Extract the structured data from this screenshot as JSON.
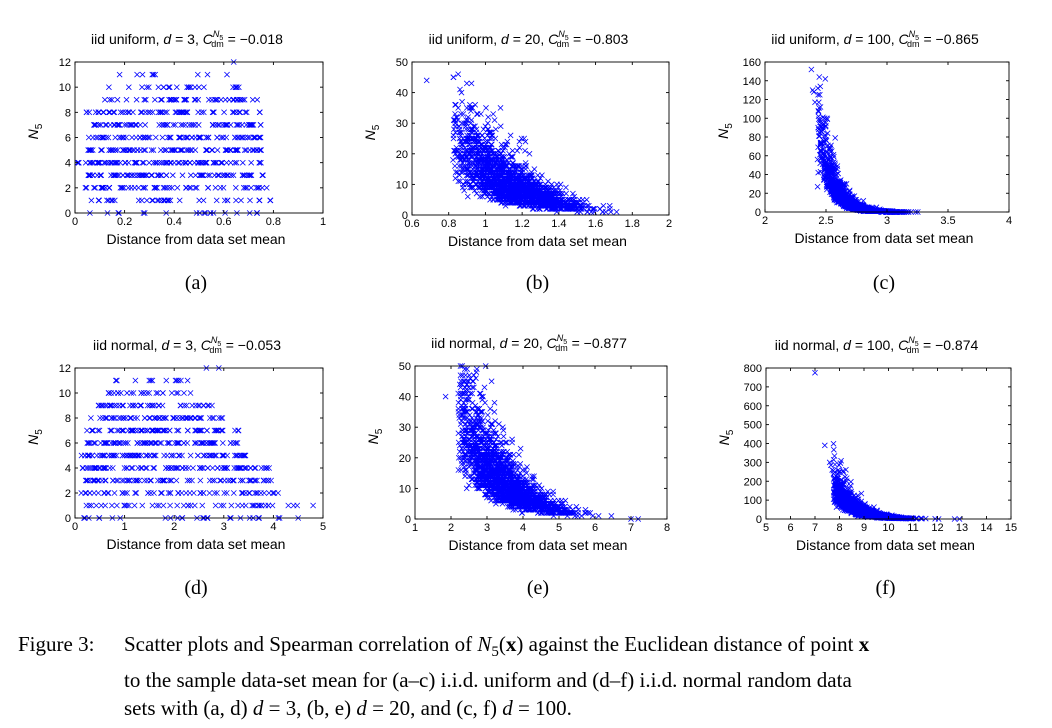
{
  "chart_data": [
    {
      "id": "a",
      "panel_label": "(a)",
      "type": "scatter",
      "title": {
        "prefix": "iid uniform,  ",
        "dvar": "d",
        "deq": " = 3,  ",
        "corr": " = −0.018"
      },
      "xlabel": "Distance from data set mean",
      "ylabel": "N5",
      "xlim": [
        0,
        1
      ],
      "ylim": [
        0,
        12
      ],
      "xticks": [
        0,
        0.2,
        0.4,
        0.6,
        0.8,
        1
      ],
      "xticklabels": [
        "0",
        "0.2",
        "0.4",
        "0.6",
        "0.8",
        "1"
      ],
      "yticks": [
        0,
        2,
        4,
        6,
        8,
        10,
        12
      ],
      "yticklabels": [
        "0",
        "2",
        "4",
        "6",
        "8",
        "10",
        "12"
      ],
      "marker": "x",
      "color": "#0000ff",
      "seed": 11,
      "kind": "bands",
      "bands": [
        {
          "y": 0,
          "x0": 0.06,
          "x1": 0.86,
          "n": 18
        },
        {
          "y": 1,
          "x0": 0.06,
          "x1": 0.79,
          "n": 38
        },
        {
          "y": 2,
          "x0": 0.04,
          "x1": 0.78,
          "n": 60
        },
        {
          "y": 3,
          "x0": 0.05,
          "x1": 0.78,
          "n": 75
        },
        {
          "y": 4,
          "x0": 0.01,
          "x1": 0.76,
          "n": 85
        },
        {
          "y": 5,
          "x0": 0.05,
          "x1": 0.76,
          "n": 85
        },
        {
          "y": 6,
          "x0": 0.05,
          "x1": 0.76,
          "n": 80
        },
        {
          "y": 7,
          "x0": 0.06,
          "x1": 0.76,
          "n": 70
        },
        {
          "y": 8,
          "x0": 0.04,
          "x1": 0.76,
          "n": 60
        },
        {
          "y": 9,
          "x0": 0.1,
          "x1": 0.74,
          "n": 45
        },
        {
          "y": 10,
          "x0": 0.11,
          "x1": 0.72,
          "n": 25
        },
        {
          "y": 11,
          "x0": 0.16,
          "x1": 0.71,
          "n": 9
        }
      ],
      "points": [
        [
          0.01,
          4
        ],
        [
          0.64,
          12
        ],
        [
          0.06,
          0
        ]
      ]
    },
    {
      "id": "b",
      "panel_label": "(b)",
      "type": "scatter",
      "title": {
        "prefix": "iid uniform,  ",
        "dvar": "d",
        "deq": " = 20,  ",
        "corr": " = −0.803"
      },
      "xlabel": "Distance from data set mean",
      "ylabel": "N5",
      "xlim": [
        0.6,
        2
      ],
      "ylim": [
        0,
        50
      ],
      "xticks": [
        0.6,
        0.8,
        1,
        1.2,
        1.4,
        1.6,
        1.8,
        2
      ],
      "xticklabels": [
        "0.6",
        "0.8",
        "1",
        "1.2",
        "1.4",
        "1.6",
        "1.8",
        "2"
      ],
      "yticks": [
        0,
        10,
        20,
        30,
        40,
        50
      ],
      "yticklabels": [
        "0",
        "10",
        "20",
        "30",
        "40",
        "50"
      ],
      "marker": "x",
      "color": "#0000ff",
      "seed": 22,
      "kind": "decay",
      "n": 2200,
      "decay": {
        "x0": 0.82,
        "x1": 1.78,
        "a": 26,
        "k": 3.2,
        "spread": 0.55,
        "xmode": "mid",
        "xm": 1.15,
        "xs": 0.17
      },
      "points": [
        [
          0.68,
          44
        ],
        [
          0.84,
          32
        ],
        [
          0.86,
          28
        ],
        [
          0.9,
          26
        ],
        [
          0.95,
          27
        ],
        [
          1.0,
          29
        ]
      ]
    },
    {
      "id": "c",
      "panel_label": "(c)",
      "type": "scatter",
      "title": {
        "prefix": "iid uniform,  ",
        "dvar": "d",
        "deq": " = 100,  ",
        "corr": " = −0.865"
      },
      "xlabel": "Distance from data set mean",
      "ylabel": "N5",
      "xlim": [
        2,
        4
      ],
      "ylim": [
        0,
        160
      ],
      "xticks": [
        2,
        2.5,
        3,
        3.5,
        4
      ],
      "xticklabels": [
        "2",
        "2.5",
        "3",
        "3.5",
        "4"
      ],
      "yticks": [
        0,
        20,
        40,
        60,
        80,
        100,
        120,
        140,
        160
      ],
      "yticklabels": [
        "0",
        "20",
        "40",
        "60",
        "80",
        "100",
        "120",
        "140",
        "160"
      ],
      "marker": "x",
      "color": "#0000ff",
      "seed": 33,
      "kind": "decay",
      "n": 1900,
      "decay": {
        "x0": 2.43,
        "x1": 3.42,
        "a": 95,
        "k": 9.0,
        "spread": 0.5,
        "xmode": "mid",
        "xm": 2.72,
        "xs": 0.15
      },
      "points": [
        [
          2.38,
          152
        ],
        [
          2.39,
          130
        ],
        [
          2.4,
          128
        ],
        [
          2.41,
          117
        ],
        [
          2.45,
          98
        ],
        [
          2.46,
          94
        ]
      ]
    },
    {
      "id": "d",
      "panel_label": "(d)",
      "type": "scatter",
      "title": {
        "prefix": "iid normal,  ",
        "dvar": "d",
        "deq": " = 3,  ",
        "corr": " = −0.053"
      },
      "xlabel": "Distance from data set mean",
      "ylabel": "N5",
      "xlim": [
        0,
        5
      ],
      "ylim": [
        0,
        12
      ],
      "xticks": [
        0,
        1,
        2,
        3,
        4,
        5
      ],
      "xticklabels": [
        "0",
        "1",
        "2",
        "3",
        "4",
        "5"
      ],
      "yticks": [
        0,
        2,
        4,
        6,
        8,
        10,
        12
      ],
      "yticklabels": [
        "0",
        "2",
        "4",
        "6",
        "8",
        "10",
        "12"
      ],
      "marker": "x",
      "color": "#0000ff",
      "seed": 44,
      "kind": "bands",
      "bands": [
        {
          "y": 0,
          "x0": 0.15,
          "x1": 4.2,
          "n": 26
        },
        {
          "y": 1,
          "x0": 0.1,
          "x1": 4.5,
          "n": 45
        },
        {
          "y": 2,
          "x0": 0.1,
          "x1": 4.1,
          "n": 60
        },
        {
          "y": 3,
          "x0": 0.15,
          "x1": 4.0,
          "n": 75
        },
        {
          "y": 4,
          "x0": 0.15,
          "x1": 3.95,
          "n": 85
        },
        {
          "y": 5,
          "x0": 0.1,
          "x1": 3.5,
          "n": 85
        },
        {
          "y": 6,
          "x0": 0.2,
          "x1": 3.3,
          "n": 80
        },
        {
          "y": 7,
          "x0": 0.2,
          "x1": 3.3,
          "n": 70
        },
        {
          "y": 8,
          "x0": 0.3,
          "x1": 3.0,
          "n": 60
        },
        {
          "y": 9,
          "x0": 0.45,
          "x1": 2.8,
          "n": 45
        },
        {
          "y": 10,
          "x0": 0.6,
          "x1": 2.5,
          "n": 25
        },
        {
          "y": 11,
          "x0": 0.7,
          "x1": 2.3,
          "n": 12
        }
      ],
      "points": [
        [
          2.65,
          12
        ],
        [
          2.9,
          12
        ],
        [
          4.8,
          1
        ],
        [
          4.5,
          0
        ],
        [
          4.3,
          1
        ],
        [
          4.1,
          0
        ],
        [
          3.9,
          1
        ]
      ]
    },
    {
      "id": "e",
      "panel_label": "(e)",
      "type": "scatter",
      "title": {
        "prefix": "iid normal,  ",
        "dvar": "d",
        "deq": " = 20,  ",
        "corr": " = −0.877"
      },
      "xlabel": "Distance from data set mean",
      "ylabel": "N5",
      "xlim": [
        1,
        8
      ],
      "ylim": [
        0,
        50
      ],
      "xticks": [
        1,
        2,
        3,
        4,
        5,
        6,
        7,
        8
      ],
      "xticklabels": [
        "1",
        "2",
        "3",
        "4",
        "5",
        "6",
        "7",
        "8"
      ],
      "yticks": [
        0,
        10,
        20,
        30,
        40,
        50
      ],
      "yticklabels": [
        "0",
        "10",
        "20",
        "30",
        "40",
        "50"
      ],
      "marker": "x",
      "color": "#0000ff",
      "seed": 55,
      "kind": "decay",
      "n": 2200,
      "decay": {
        "x0": 2.2,
        "x1": 7.1,
        "a": 34,
        "k": 0.85,
        "spread": 0.5,
        "xmode": "mid",
        "xm": 3.5,
        "xs": 0.75
      },
      "points": [
        [
          1.85,
          40
        ],
        [
          2.3,
          44
        ],
        [
          2.2,
          41
        ],
        [
          2.4,
          42
        ],
        [
          2.6,
          38
        ],
        [
          7.2,
          0
        ],
        [
          7.0,
          0
        ]
      ]
    },
    {
      "id": "f",
      "panel_label": "(f)",
      "type": "scatter",
      "title": {
        "prefix": "iid normal,  ",
        "dvar": "d",
        "deq": " = 100,  ",
        "corr": " = −0.874"
      },
      "xlabel": "Distance from data set mean",
      "ylabel": "N5",
      "xlim": [
        5,
        15
      ],
      "ylim": [
        0,
        800
      ],
      "xticks": [
        5,
        6,
        7,
        8,
        9,
        10,
        11,
        12,
        13,
        14,
        15
      ],
      "xticklabels": [
        "5",
        "6",
        "7",
        "8",
        "9",
        "10",
        "11",
        "12",
        "13",
        "14",
        "15"
      ],
      "yticks": [
        0,
        100,
        200,
        300,
        400,
        500,
        600,
        700,
        800
      ],
      "yticklabels": [
        "0",
        "100",
        "200",
        "300",
        "400",
        "500",
        "600",
        "700",
        "800"
      ],
      "marker": "x",
      "color": "#0000ff",
      "seed": 66,
      "kind": "decay",
      "n": 1800,
      "decay": {
        "x0": 7.75,
        "x1": 12.8,
        "a": 180,
        "k": 1.3,
        "spread": 0.5,
        "xmode": "mid",
        "xm": 9.0,
        "xs": 0.8
      },
      "points": [
        [
          7.0,
          775
        ],
        [
          7.4,
          390
        ],
        [
          7.6,
          300
        ],
        [
          7.65,
          285
        ],
        [
          7.7,
          260
        ],
        [
          12.9,
          0
        ],
        [
          12.7,
          0
        ]
      ]
    }
  ],
  "caption": {
    "label": "Figure 3:",
    "lines": [
      [
        {
          "t": "Scatter plots and Spearman correlation of "
        },
        {
          "t": "N",
          "i": true
        },
        {
          "t": "5",
          "sub": true
        },
        {
          "t": "("
        },
        {
          "t": "x",
          "b": true
        },
        {
          "t": ") against the Euclidean distance of point "
        },
        {
          "t": "x",
          "b": true
        }
      ],
      [
        {
          "t": "to the sample data-set mean for (a–c) i.i.d. uniform and (d–f) i.i.d. normal random data"
        }
      ],
      [
        {
          "t": "sets with (a, d) "
        },
        {
          "t": "d",
          "i": true
        },
        {
          "t": " = 3, (b, e) "
        },
        {
          "t": "d",
          "i": true
        },
        {
          "t": " = 20, and (c, f) "
        },
        {
          "t": "d",
          "i": true
        },
        {
          "t": " = 100."
        }
      ]
    ]
  }
}
